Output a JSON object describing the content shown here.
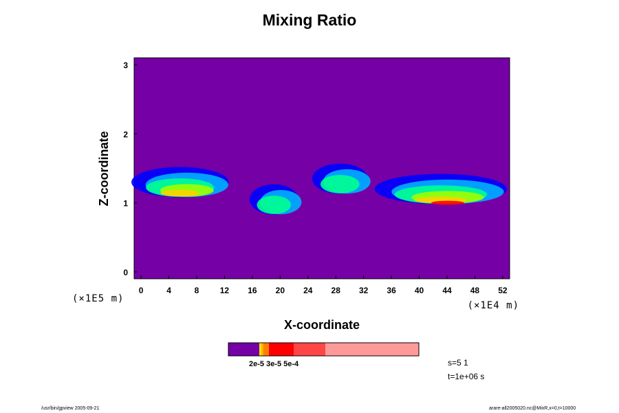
{
  "chart_data": {
    "type": "heatmap",
    "title": "Mixing Ratio",
    "xlabel": "X-coordinate",
    "ylabel": "Z-coordinate",
    "x_unit": "(×1E4 m)",
    "y_unit": "(×1E5 m)",
    "xlim": [
      -1,
      53
    ],
    "ylim": [
      -0.1,
      3.1
    ],
    "x_ticks": [
      "0",
      "4",
      "8",
      "12",
      "16",
      "20",
      "24",
      "28",
      "32",
      "36",
      "40",
      "44",
      "48",
      "52"
    ],
    "y_ticks": [
      "0",
      "1",
      "2",
      "3"
    ],
    "background_color": "#7500A6",
    "colorbar": {
      "label": "2e-5 3e-5 5e-4",
      "colors": [
        "#7500A6",
        "#ffb000",
        "#ff7f00",
        "#ff0000",
        "#ff4646",
        "#ff9a9a"
      ]
    },
    "plumes": [
      {
        "x0": -1,
        "x1": 13,
        "z": 1.3,
        "color": "#1a3dff"
      },
      {
        "x0": 16,
        "x1": 23,
        "z": 1.05,
        "color": "#00c8ff"
      },
      {
        "x0": 25,
        "x1": 33,
        "z": 1.35,
        "color": "#0040ff"
      },
      {
        "x0": 34,
        "x1": 53,
        "z": 1.2,
        "color": "#00e070"
      }
    ]
  },
  "info": {
    "s": "s=5 1",
    "t": "t=1e+06 s"
  },
  "footer": {
    "left": "/usr/bin/gpview 2005-09-21",
    "right": "arare-all2005020.nc@MixR,x=0,t=10000"
  }
}
